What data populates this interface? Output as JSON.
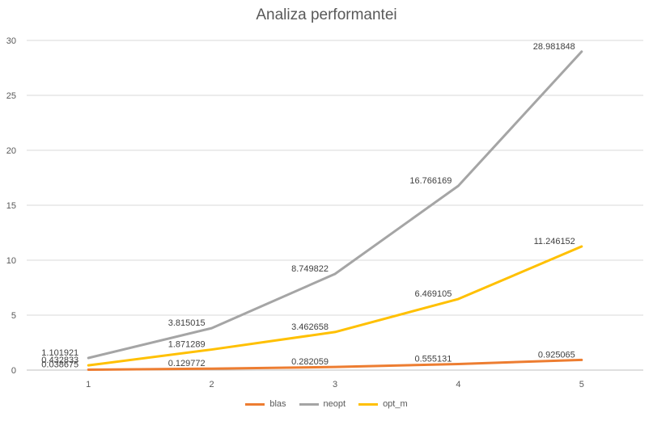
{
  "chart_data": {
    "type": "line",
    "title": "Analiza performantei",
    "xlabel": "",
    "ylabel": "",
    "x": [
      1,
      2,
      3,
      4,
      5
    ],
    "x_tick_labels": [
      "1",
      "2",
      "3",
      "4",
      "5"
    ],
    "ylim": [
      0,
      30
    ],
    "y_ticks": [
      0,
      5,
      10,
      15,
      20,
      25,
      30
    ],
    "y_tick_labels": [
      "0",
      "5",
      "10",
      "15",
      "20",
      "25",
      "30"
    ],
    "grid": "horizontal",
    "legend_position": "bottom",
    "series": [
      {
        "name": "blas",
        "color": "#ED7D31",
        "values": [
          0.038675,
          0.129772,
          0.282059,
          0.555131,
          0.925065
        ],
        "value_labels": [
          "0.038675",
          "0.129772",
          "0.282059",
          "0.555131",
          "0.925065"
        ]
      },
      {
        "name": "neopt",
        "color": "#A5A5A5",
        "values": [
          1.101921,
          3.815015,
          8.749822,
          16.766169,
          28.981848
        ],
        "value_labels": [
          "1.101921",
          "3.815015",
          "8.749822",
          "16.766169",
          "28.981848"
        ]
      },
      {
        "name": "opt_m",
        "color": "#FFC000",
        "values": [
          0.432833,
          1.871289,
          3.462658,
          6.469105,
          11.246152
        ],
        "value_labels": [
          "0.432833",
          "1.871289",
          "3.462658",
          "6.469105",
          "11.246152"
        ]
      }
    ]
  }
}
